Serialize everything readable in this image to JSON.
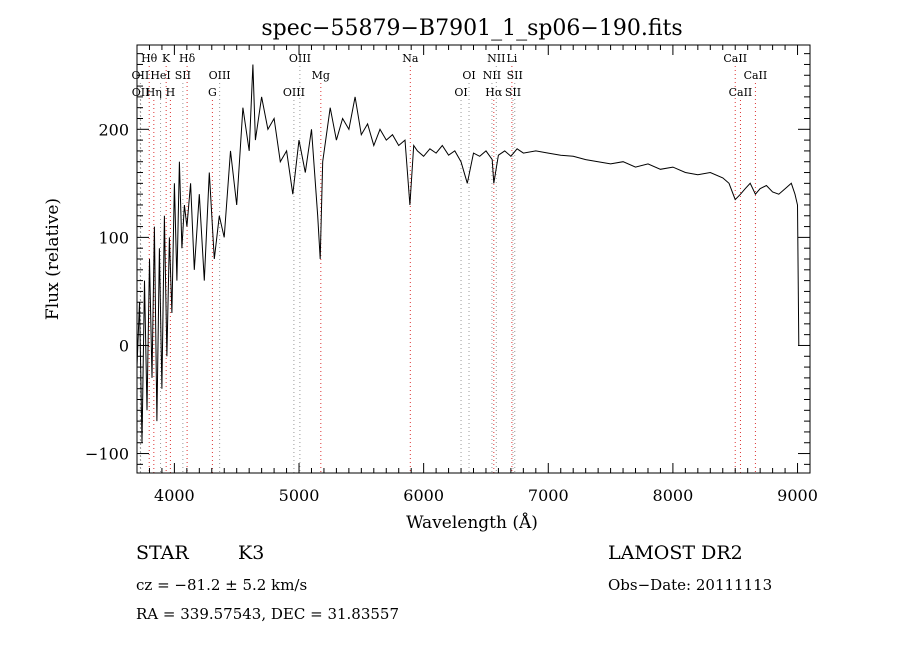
{
  "chart_data": {
    "type": "line",
    "title": "spec−55879−B7901_1_sp06−190.fits",
    "xlabel": "Wavelength (Å)",
    "ylabel": "Flux (relative)",
    "xlim": [
      3700,
      9100
    ],
    "ylim": [
      -118,
      278
    ],
    "x_ticks": [
      4000,
      5000,
      6000,
      7000,
      8000,
      9000
    ],
    "y_ticks": [
      -100,
      0,
      100,
      200
    ],
    "x_tick_labels": [
      "4000",
      "5000",
      "6000",
      "7000",
      "8000",
      "9000"
    ],
    "y_tick_labels": [
      "−100",
      "0",
      "100",
      "200"
    ],
    "grid": false,
    "series": [
      {
        "x": [
          3700,
          3720,
          3740,
          3760,
          3780,
          3800,
          3820,
          3840,
          3860,
          3880,
          3900,
          3920,
          3940,
          3960,
          3980,
          4000,
          4020,
          4040,
          4060,
          4080,
          4100,
          4130,
          4160,
          4200,
          4240,
          4280,
          4320,
          4360,
          4400,
          4450,
          4500,
          4550,
          4600,
          4630,
          4650,
          4700,
          4750,
          4800,
          4850,
          4900,
          4950,
          5000,
          5050,
          5100,
          5150,
          5170,
          5190,
          5250,
          5300,
          5350,
          5400,
          5450,
          5500,
          5550,
          5600,
          5650,
          5700,
          5750,
          5800,
          5850,
          5890,
          5920,
          5950,
          6000,
          6050,
          6100,
          6150,
          6200,
          6250,
          6300,
          6350,
          6400,
          6450,
          6500,
          6550,
          6563,
          6600,
          6650,
          6700,
          6750,
          6800,
          6900,
          7000,
          7100,
          7200,
          7300,
          7400,
          7500,
          7600,
          7700,
          7800,
          7900,
          8000,
          8100,
          8200,
          8300,
          8400,
          8450,
          8500,
          8542,
          8580,
          8620,
          8662,
          8700,
          8750,
          8800,
          8850,
          8900,
          8950,
          8980,
          9000,
          9010
        ],
        "y": [
          -20,
          40,
          -90,
          60,
          -60,
          80,
          -30,
          110,
          -70,
          90,
          -40,
          120,
          -10,
          100,
          30,
          150,
          60,
          170,
          90,
          130,
          110,
          150,
          70,
          140,
          60,
          160,
          80,
          120,
          100,
          180,
          130,
          220,
          180,
          260,
          190,
          230,
          200,
          210,
          170,
          180,
          140,
          190,
          160,
          200,
          120,
          80,
          170,
          220,
          190,
          210,
          200,
          230,
          195,
          205,
          185,
          200,
          190,
          195,
          185,
          190,
          130,
          185,
          180,
          175,
          182,
          178,
          185,
          176,
          180,
          170,
          150,
          178,
          175,
          180,
          172,
          150,
          176,
          180,
          175,
          182,
          178,
          180,
          178,
          176,
          175,
          172,
          170,
          168,
          170,
          165,
          168,
          163,
          165,
          160,
          158,
          160,
          155,
          150,
          135,
          140,
          145,
          150,
          140,
          145,
          148,
          142,
          140,
          145,
          150,
          140,
          130,
          0
        ]
      }
    ],
    "lines": [
      {
        "label": "Hθ",
        "x": 3798,
        "row": 1,
        "style": "red"
      },
      {
        "label": "K",
        "x": 3934,
        "row": 1,
        "style": "red"
      },
      {
        "label": "Hδ",
        "x": 4102,
        "row": 1,
        "style": "red"
      },
      {
        "label": "OIII",
        "x": 5007,
        "row": 1,
        "style": "grey"
      },
      {
        "label": "Na",
        "x": 5893,
        "row": 1,
        "style": "red"
      },
      {
        "label": "NII",
        "x": 6583,
        "row": 1,
        "style": "grey"
      },
      {
        "label": "Li",
        "x": 6708,
        "row": 1,
        "style": "red"
      },
      {
        "label": "CaII",
        "x": 8500,
        "row": 1,
        "style": "red"
      },
      {
        "label": "OII",
        "x": 3727,
        "row": 2,
        "style": "grey"
      },
      {
        "label": "HeI",
        "x": 3889,
        "row": 2,
        "style": "grey"
      },
      {
        "label": "SII",
        "x": 4068,
        "row": 2,
        "style": "grey"
      },
      {
        "label": "OIII",
        "x": 4363,
        "row": 2,
        "style": "grey"
      },
      {
        "label": "Mg",
        "x": 5175,
        "row": 2,
        "style": "red"
      },
      {
        "label": "OI",
        "x": 6364,
        "row": 2,
        "style": "grey"
      },
      {
        "label": "NII",
        "x": 6548,
        "row": 2,
        "style": "grey"
      },
      {
        "label": "SII",
        "x": 6731,
        "row": 2,
        "style": "grey"
      },
      {
        "label": "CaII",
        "x": 8662,
        "row": 2,
        "style": "red"
      },
      {
        "label": "OII",
        "x": 3729,
        "row": 3,
        "style": "grey"
      },
      {
        "label": "Hη",
        "x": 3835,
        "row": 3,
        "style": "red"
      },
      {
        "label": "H",
        "x": 3968,
        "row": 3,
        "style": "red"
      },
      {
        "label": "G",
        "x": 4305,
        "row": 3,
        "style": "red"
      },
      {
        "label": "OIII",
        "x": 4959,
        "row": 3,
        "style": "grey"
      },
      {
        "label": "OI",
        "x": 6300,
        "row": 3,
        "style": "grey"
      },
      {
        "label": "Hα",
        "x": 6563,
        "row": 3,
        "style": "red"
      },
      {
        "label": "SII",
        "x": 6717,
        "row": 3,
        "style": "grey"
      },
      {
        "label": "CaII",
        "x": 8542,
        "row": 3,
        "style": "red"
      }
    ]
  },
  "info": {
    "object_class": "STAR",
    "subclass": "K3",
    "release": "LAMOST DR2",
    "cz": "cz = −81.2 ± 5.2 km/s",
    "obs_date": "Obs−Date: 20111113",
    "radec": "RA = 339.57543, DEC =  31.83557"
  }
}
